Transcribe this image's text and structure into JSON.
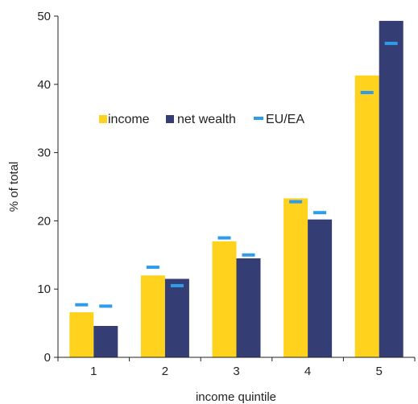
{
  "chart_data": {
    "type": "bar",
    "title": "",
    "xlabel": "income quintile",
    "ylabel": "% of total",
    "categories": [
      "1",
      "2",
      "3",
      "4",
      "5"
    ],
    "ylim": [
      0,
      50
    ],
    "yticks": [
      "0",
      "10",
      "20",
      "30",
      "40",
      "50"
    ],
    "grid": false,
    "legend_position": "middle-left",
    "series": [
      {
        "name": "income",
        "kind": "bar",
        "color": "#FFD21E",
        "values": [
          6.6,
          12.0,
          17.0,
          23.3,
          41.3
        ]
      },
      {
        "name": "net wealth",
        "kind": "bar",
        "color": "#343E74",
        "values": [
          4.6,
          11.5,
          14.5,
          20.2,
          49.3
        ]
      }
    ],
    "eu_ea": {
      "name": "EU/EA",
      "kind": "marker",
      "color": "#2E9BEB",
      "income": [
        7.7,
        13.2,
        17.5,
        22.8,
        38.8
      ],
      "net_wealth": [
        7.5,
        10.5,
        15.0,
        21.2,
        46.0
      ]
    }
  }
}
